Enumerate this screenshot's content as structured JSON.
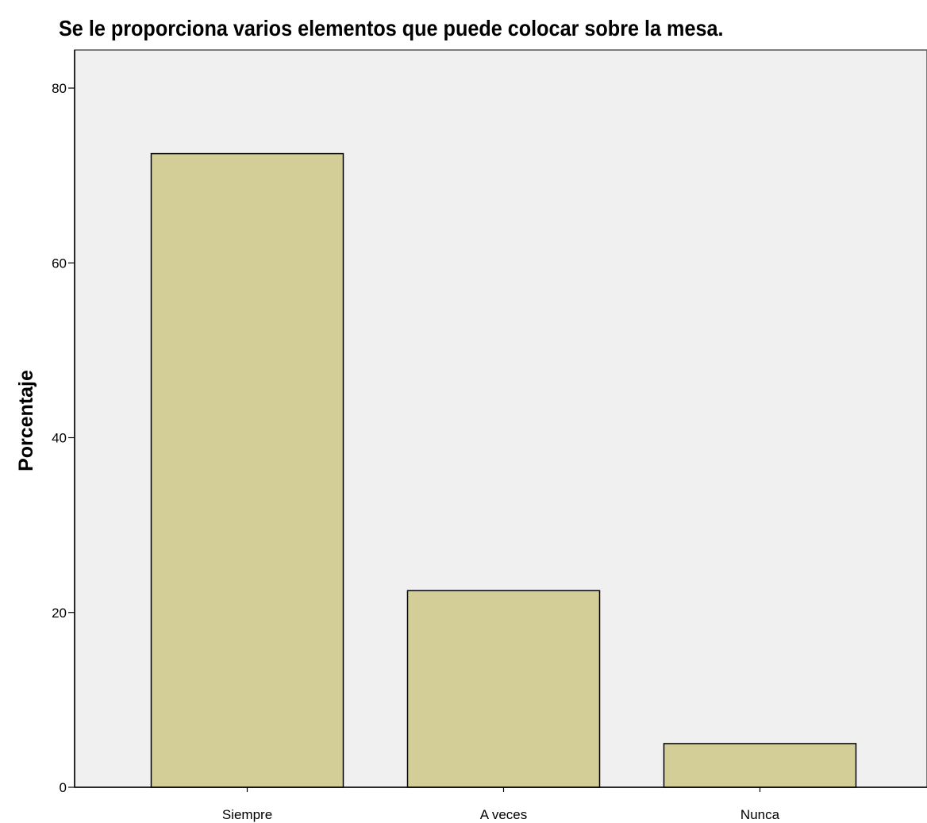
{
  "chart_data": {
    "type": "bar",
    "title": "Se le proporciona varios elementos que puede colocar sobre la mesa.",
    "xlabel": "",
    "ylabel": "Porcentaje",
    "categories": [
      "Siempre",
      "A veces",
      "Nunca"
    ],
    "values": [
      72.5,
      22.5,
      5.0
    ],
    "ylim": [
      0,
      80
    ],
    "yticks": [
      0,
      20,
      40,
      60,
      80
    ],
    "grid": false,
    "colors": {
      "bar_fill": "#d3cd97",
      "bar_stroke": "#000000",
      "plot_background": "#f0f0f0",
      "axis": "#000000"
    }
  }
}
